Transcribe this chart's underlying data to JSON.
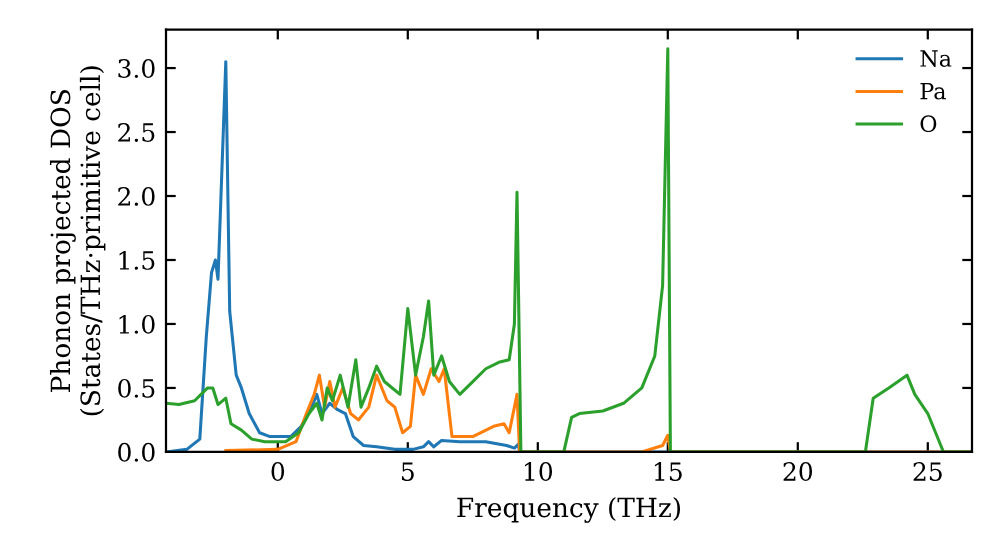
{
  "chart_data": {
    "type": "line",
    "xlabel": "Frequency (THz)",
    "ylabel": "Phonon projected DOS\n(States/THz·primitive cell)",
    "xlim": [
      -4.3,
      26.7
    ],
    "ylim": [
      0,
      3.3
    ],
    "xticks": [
      0,
      5,
      10,
      15,
      20,
      25
    ],
    "yticks": [
      {
        "value": 0,
        "label": "0.0"
      },
      {
        "value": 0.5,
        "label": "0.5"
      },
      {
        "value": 1,
        "label": "1.0"
      },
      {
        "value": 1.5,
        "label": "1.5"
      },
      {
        "value": 2,
        "label": "2.0"
      },
      {
        "value": 2.5,
        "label": "2.5"
      },
      {
        "value": 3,
        "label": "3.0"
      }
    ],
    "grid": false,
    "legend": "top right",
    "marker": "none",
    "line_style": "solid",
    "series": [
      {
        "name": "Na",
        "color": "#1f77b4",
        "x": [
          -4.3,
          -3.5,
          -3.0,
          -2.75,
          -2.55,
          -2.4,
          -2.3,
          -2.0,
          -1.85,
          -1.6,
          -1.4,
          -1.1,
          -0.7,
          -0.3,
          0.5,
          0.9,
          1.3,
          1.5,
          1.7,
          2.0,
          2.3,
          2.6,
          2.9,
          3.3,
          3.8,
          4.5,
          5.2,
          5.6,
          5.8,
          6.0,
          6.3,
          7.0,
          8.0,
          8.8,
          9.1,
          9.25,
          9.3,
          26.7
        ],
        "values": [
          0,
          0.02,
          0.1,
          0.9,
          1.4,
          1.5,
          1.35,
          3.05,
          1.1,
          0.6,
          0.5,
          0.3,
          0.15,
          0.12,
          0.12,
          0.2,
          0.35,
          0.45,
          0.3,
          0.38,
          0.33,
          0.3,
          0.12,
          0.05,
          0.04,
          0.02,
          0.02,
          0.04,
          0.08,
          0.04,
          0.09,
          0.08,
          0.08,
          0.05,
          0.03,
          0.06,
          0,
          0
        ]
      },
      {
        "name": "Pa",
        "color": "#ff7f0e",
        "x": [
          -2,
          0,
          0.7,
          1.1,
          1.4,
          1.6,
          1.8,
          2.0,
          2.2,
          2.5,
          2.8,
          3.1,
          3.5,
          3.8,
          4.2,
          4.5,
          4.8,
          5.1,
          5.3,
          5.6,
          5.9,
          6.2,
          6.4,
          6.7,
          7.5,
          8.3,
          8.7,
          8.9,
          9.2,
          9.3,
          14.0,
          14.8,
          15.0,
          15.1,
          26.7
        ],
        "values": [
          0.01,
          0.02,
          0.08,
          0.3,
          0.45,
          0.6,
          0.35,
          0.55,
          0.35,
          0.5,
          0.3,
          0.25,
          0.35,
          0.6,
          0.4,
          0.35,
          0.15,
          0.2,
          0.6,
          0.45,
          0.65,
          0.55,
          0.65,
          0.12,
          0.12,
          0.2,
          0.22,
          0.15,
          0.45,
          0,
          0,
          0.05,
          0.13,
          0,
          0
        ]
      },
      {
        "name": "O",
        "color": "#2ca02c",
        "x": [
          -4.3,
          -3.8,
          -3.2,
          -2.7,
          -2.5,
          -2.3,
          -2.0,
          -1.8,
          -1.4,
          -1.0,
          -0.5,
          0.3,
          0.8,
          1.2,
          1.5,
          1.7,
          1.9,
          2.1,
          2.4,
          2.7,
          3.0,
          3.2,
          3.5,
          3.8,
          4.1,
          4.4,
          4.7,
          5.0,
          5.3,
          5.6,
          5.8,
          6.0,
          6.3,
          6.6,
          7.0,
          7.5,
          8.0,
          8.5,
          8.9,
          9.1,
          9.2,
          9.35,
          11.0,
          11.3,
          11.6,
          12.5,
          13.3,
          14.0,
          14.5,
          14.8,
          15.0,
          15.1,
          22.6,
          22.9,
          23.5,
          24.2,
          24.5,
          25.0,
          25.5,
          25.6,
          26.7
        ],
        "values": [
          0.38,
          0.37,
          0.4,
          0.5,
          0.5,
          0.37,
          0.42,
          0.22,
          0.17,
          0.1,
          0.08,
          0.08,
          0.15,
          0.3,
          0.38,
          0.25,
          0.5,
          0.4,
          0.6,
          0.35,
          0.72,
          0.35,
          0.5,
          0.67,
          0.55,
          0.5,
          0.45,
          1.12,
          0.6,
          0.9,
          1.18,
          0.6,
          0.75,
          0.55,
          0.45,
          0.55,
          0.65,
          0.7,
          0.72,
          1.0,
          2.03,
          0,
          0,
          0.27,
          0.3,
          0.32,
          0.38,
          0.5,
          0.75,
          1.3,
          3.15,
          0,
          0,
          0.42,
          0.5,
          0.6,
          0.45,
          0.3,
          0.05,
          0,
          0
        ]
      }
    ]
  }
}
